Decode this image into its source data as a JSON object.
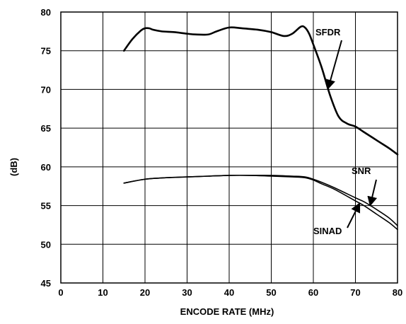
{
  "chart_data": {
    "type": "line",
    "title": "",
    "xlabel": "ENCODE RATE (MHz)",
    "ylabel": "(dB)",
    "xlim": [
      0,
      80
    ],
    "ylim": [
      45,
      80
    ],
    "x_ticks": [
      0,
      10,
      20,
      30,
      40,
      50,
      60,
      70,
      80
    ],
    "y_ticks": [
      45,
      50,
      55,
      60,
      65,
      70,
      75,
      80
    ],
    "x_tick_labels": [
      "0",
      "10",
      "20",
      "30",
      "40",
      "50",
      "60",
      "70",
      "80"
    ],
    "y_tick_labels": [
      "45",
      "50",
      "55",
      "60",
      "65",
      "70",
      "75",
      "80"
    ],
    "grid": true,
    "colors": {
      "line": "#000000",
      "grid": "#000000",
      "background": "#ffffff"
    },
    "series": [
      {
        "name": "SFDR",
        "x": [
          15,
          17,
          19,
          20,
          21,
          22,
          24,
          27,
          30,
          32,
          35,
          37,
          40,
          43,
          47,
          50,
          53,
          55,
          57,
          58,
          59,
          60,
          62,
          64,
          66,
          68,
          70,
          72,
          74,
          76,
          78,
          80
        ],
        "y": [
          75.0,
          76.5,
          77.6,
          77.9,
          77.9,
          77.7,
          77.5,
          77.4,
          77.2,
          77.1,
          77.1,
          77.5,
          78.0,
          77.9,
          77.7,
          77.4,
          76.9,
          77.2,
          78.1,
          78.0,
          77.2,
          75.8,
          72.8,
          69.2,
          66.5,
          65.6,
          65.2,
          64.5,
          63.8,
          63.1,
          62.4,
          61.6
        ]
      },
      {
        "name": "SNR",
        "x": [
          15,
          20,
          25,
          30,
          35,
          40,
          45,
          50,
          55,
          58,
          60,
          62,
          65,
          70,
          72,
          75,
          78,
          80
        ],
        "y": [
          57.9,
          58.4,
          58.6,
          58.7,
          58.8,
          58.9,
          58.9,
          58.9,
          58.8,
          58.7,
          58.4,
          58.0,
          57.3,
          56.0,
          55.5,
          54.5,
          53.4,
          52.4
        ]
      },
      {
        "name": "SINAD",
        "x": [
          15,
          20,
          25,
          30,
          35,
          40,
          45,
          50,
          55,
          58,
          60,
          62,
          65,
          70,
          72,
          75,
          78,
          80
        ],
        "y": [
          57.9,
          58.4,
          58.6,
          58.7,
          58.8,
          58.9,
          58.9,
          58.8,
          58.7,
          58.6,
          58.3,
          57.8,
          57.1,
          55.6,
          55.0,
          53.9,
          52.8,
          51.9
        ]
      }
    ],
    "annotations": [
      {
        "text": "SFDR",
        "target_series": "SFDR"
      },
      {
        "text": "SNR",
        "target_series": "SNR"
      },
      {
        "text": "SINAD",
        "target_series": "SINAD"
      }
    ]
  }
}
